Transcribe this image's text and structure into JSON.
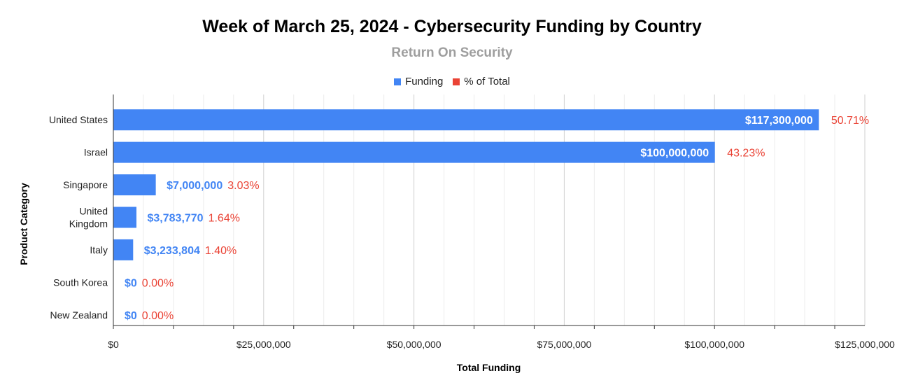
{
  "title": "Week of March 25, 2024 - Cybersecurity Funding by Country",
  "subtitle": "Return On Security",
  "legend": [
    {
      "label": "Funding",
      "color": "#4285f4"
    },
    {
      "label": "% of Total",
      "color": "#ea4335"
    }
  ],
  "chart_data": {
    "type": "bar",
    "orientation": "horizontal",
    "title": "Week of March 25, 2024 - Cybersecurity Funding by Country",
    "subtitle": "Return On Security",
    "xlabel": "Total Funding",
    "ylabel": "Product Category",
    "xlim": [
      0,
      125000000
    ],
    "x_ticks": [
      0,
      25000000,
      50000000,
      75000000,
      100000000,
      125000000
    ],
    "x_tick_labels": [
      "$0",
      "$25,000,000",
      "$50,000,000",
      "$75,000,000",
      "$100,000,000",
      "$125,000,000"
    ],
    "grid": true,
    "legend_position": "top-center",
    "categories": [
      [
        "United States"
      ],
      [
        "Israel"
      ],
      [
        "Singapore"
      ],
      [
        "United",
        "Kingdom"
      ],
      [
        "Italy"
      ],
      [
        "South Korea"
      ],
      [
        "New Zealand"
      ]
    ],
    "series": [
      {
        "name": "Funding",
        "color": "#4285f4",
        "values": [
          117300000,
          100000000,
          7000000,
          3783770,
          3233804,
          0,
          0
        ],
        "labels": [
          "$117,300,000",
          "$100,000,000",
          "$7,000,000",
          "$3,783,770",
          "$3,233,804",
          "$0",
          "$0"
        ]
      },
      {
        "name": "% of Total",
        "color": "#ea4335",
        "values": [
          50.71,
          43.23,
          3.03,
          1.64,
          1.4,
          0.0,
          0.0
        ],
        "labels": [
          "50.71%",
          "43.23%",
          "3.03%",
          "1.64%",
          "1.40%",
          "0.00%",
          "0.00%"
        ]
      }
    ]
  }
}
